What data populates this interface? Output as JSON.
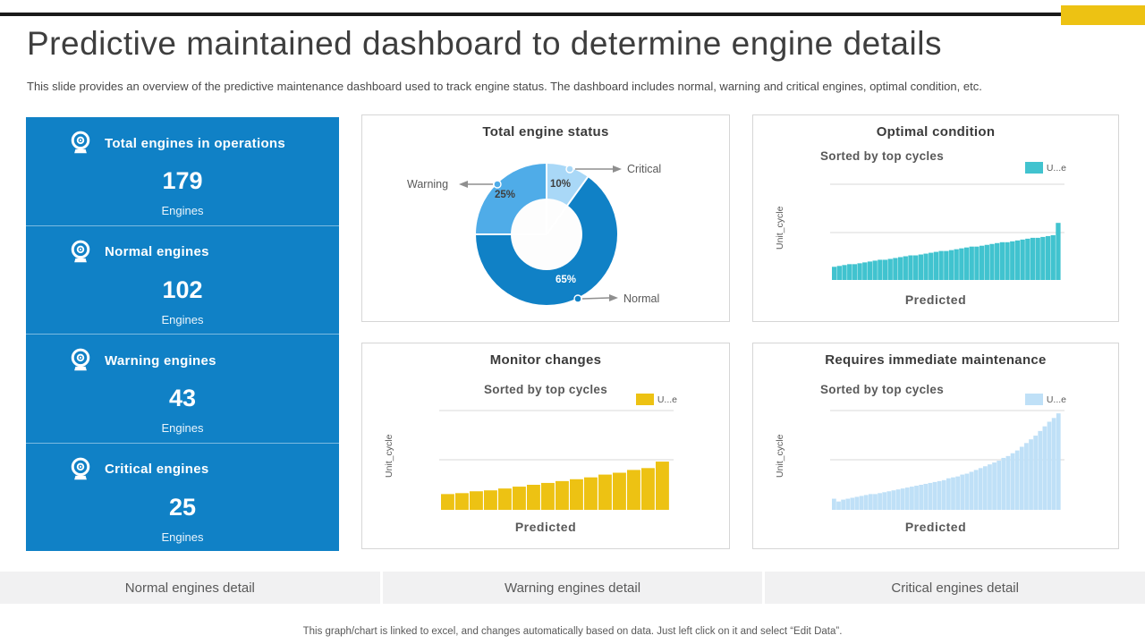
{
  "colors": {
    "brand_blue": "#1081C6",
    "mid_blue": "#4FACE8",
    "light_blue": "#A9D8F7",
    "teal": "#41C3CF",
    "yellow": "#EDC213",
    "pale_blue": "#BFE0F7",
    "text_dark": "#3E3E3E",
    "text_gray": "#595959"
  },
  "header": {
    "title": "Predictive maintained dashboard to determine engine details",
    "subtitle": "This slide provides an overview of the predictive maintenance dashboard used to track engine status. The dashboard includes normal, warning and critical engines, optimal condition, etc."
  },
  "sidebar": {
    "cards": [
      {
        "icon": "webcam-icon",
        "label": "Total engines in operations",
        "value": "179",
        "unit": "Engines"
      },
      {
        "icon": "webcam-icon",
        "label": "Normal engines",
        "value": "102",
        "unit": "Engines"
      },
      {
        "icon": "webcam-icon",
        "label": "Warning engines",
        "value": "43",
        "unit": "Engines"
      },
      {
        "icon": "webcam-icon",
        "label": "Critical engines",
        "value": "25",
        "unit": "Engines"
      }
    ]
  },
  "chart_data": [
    {
      "id": "status-donut",
      "type": "pie",
      "donut": true,
      "title": "Total engine status",
      "legend_position": "callout-labels",
      "slices": [
        {
          "label": "Critical",
          "value": 10,
          "pct_label": "10%",
          "color": "#A9D8F7",
          "pct_color": "#3F3F3F"
        },
        {
          "label": "Normal",
          "value": 65,
          "pct_label": "65%",
          "color": "#1081C6",
          "pct_color": "#FFFFFF"
        },
        {
          "label": "Warning",
          "value": 25,
          "pct_label": "25%",
          "color": "#4FACE8",
          "pct_color": "#3F3F3F"
        }
      ]
    },
    {
      "id": "optimal",
      "type": "bar",
      "title": "Optimal condition",
      "subtitle": "Sorted by top cycles",
      "legend": "U...e",
      "xlabel": "Predicted",
      "ylabel": "Unit_cycle",
      "color": "#41C3CF",
      "ylim": [
        0,
        115
      ],
      "gridlines": [
        54,
        108
      ],
      "grid": true,
      "values": [
        15,
        16,
        17,
        18,
        18,
        19,
        20,
        21,
        22,
        23,
        23,
        24,
        25,
        26,
        27,
        28,
        28,
        29,
        30,
        31,
        32,
        33,
        33,
        34,
        35,
        36,
        37,
        38,
        38,
        39,
        40,
        41,
        42,
        43,
        43,
        44,
        45,
        46,
        47,
        48,
        48,
        49,
        50,
        51,
        65
      ]
    },
    {
      "id": "monitor",
      "type": "bar",
      "title": "Monitor changes",
      "subtitle": "Sorted by top cycles",
      "legend": "U...e",
      "xlabel": "Predicted",
      "ylabel": "Unit_cycle",
      "color": "#EDC213",
      "ylim": [
        0,
        115
      ],
      "gridlines": [
        54,
        108
      ],
      "grid": true,
      "values": [
        17,
        18,
        20,
        21,
        23,
        25,
        27,
        29,
        31,
        33,
        35,
        38,
        40,
        43,
        45,
        52
      ]
    },
    {
      "id": "requires",
      "type": "bar",
      "title": "Requires immediate maintenance",
      "subtitle": "Sorted by top cycles",
      "legend": "U...e",
      "xlabel": "Predicted",
      "ylabel": "Unit_cycle",
      "color": "#BFE0F7",
      "ylim": [
        0,
        115
      ],
      "gridlines": [
        54,
        108
      ],
      "grid": true,
      "values": [
        12,
        9,
        11,
        12,
        13,
        14,
        15,
        16,
        17,
        17,
        18,
        19,
        20,
        21,
        22,
        23,
        24,
        25,
        26,
        27,
        28,
        29,
        30,
        31,
        32,
        34,
        35,
        36,
        38,
        39,
        41,
        43,
        45,
        47,
        49,
        51,
        53,
        56,
        58,
        61,
        64,
        68,
        72,
        76,
        80,
        85,
        90,
        95,
        99,
        104
      ]
    }
  ],
  "footer": {
    "buttons": [
      {
        "label": "Normal engines detail"
      },
      {
        "label": "Warning engines detail"
      },
      {
        "label": "Critical engines detail"
      }
    ],
    "note": "This graph/chart is linked to excel, and changes automatically based on data. Just left click on it and select “Edit Data”."
  }
}
